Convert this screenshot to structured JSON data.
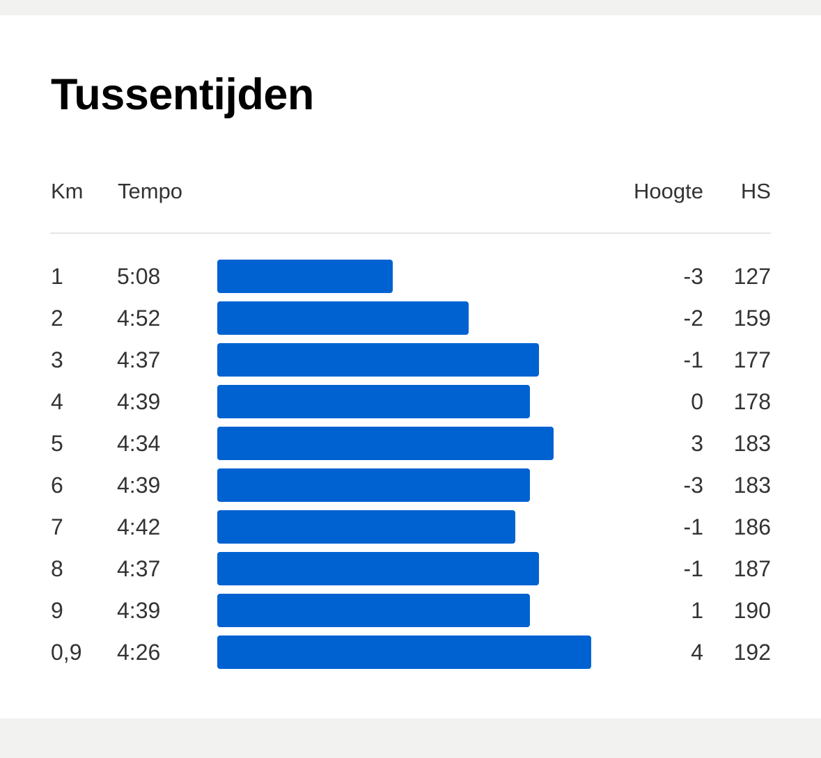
{
  "section": {
    "title": "Tussentijden"
  },
  "table": {
    "headers": {
      "km": "Km",
      "tempo": "Tempo",
      "hoogte": "Hoogte",
      "hs": "HS"
    },
    "bar_color": "#0062d1",
    "pace_scale": {
      "slowest_seconds": 308,
      "fastest_seconds": 266
    },
    "rows": [
      {
        "km": "1",
        "tempo": "5:08",
        "pace_seconds": 308,
        "hoogte": "-3",
        "hs": "127"
      },
      {
        "km": "2",
        "tempo": "4:52",
        "pace_seconds": 292,
        "hoogte": "-2",
        "hs": "159"
      },
      {
        "km": "3",
        "tempo": "4:37",
        "pace_seconds": 277,
        "hoogte": "-1",
        "hs": "177"
      },
      {
        "km": "4",
        "tempo": "4:39",
        "pace_seconds": 279,
        "hoogte": "0",
        "hs": "178"
      },
      {
        "km": "5",
        "tempo": "4:34",
        "pace_seconds": 274,
        "hoogte": "3",
        "hs": "183"
      },
      {
        "km": "6",
        "tempo": "4:39",
        "pace_seconds": 279,
        "hoogte": "-3",
        "hs": "183"
      },
      {
        "km": "7",
        "tempo": "4:42",
        "pace_seconds": 282,
        "hoogte": "-1",
        "hs": "186"
      },
      {
        "km": "8",
        "tempo": "4:37",
        "pace_seconds": 277,
        "hoogte": "-1",
        "hs": "187"
      },
      {
        "km": "9",
        "tempo": "4:39",
        "pace_seconds": 279,
        "hoogte": "1",
        "hs": "190"
      },
      {
        "km": "0,9",
        "tempo": "4:26",
        "pace_seconds": 266,
        "hoogte": "4",
        "hs": "192"
      }
    ]
  }
}
